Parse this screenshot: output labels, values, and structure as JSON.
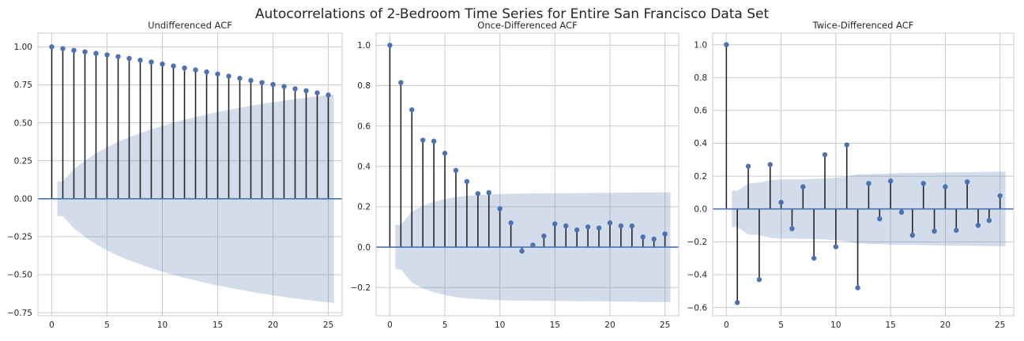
{
  "figure_title": "Autocorrelations of 2-Bedroom Time Series for Entire San Francisco Data Set",
  "colors": {
    "marker": "#4c72b0",
    "stem": "#262626",
    "band": "#4c72b0",
    "zero_line": "#4c72b0",
    "grid": "#cccccc",
    "spine": "#cccccc"
  },
  "chart_data": [
    {
      "type": "stem",
      "title": "Undifferenced ACF",
      "xlabel": "",
      "ylabel": "",
      "xlim": [
        -1.25,
        26.25
      ],
      "ylim": [
        -0.77,
        1.09
      ],
      "xticks": [
        0,
        5,
        10,
        15,
        20,
        25
      ],
      "xtick_labels": [
        "0",
        "5",
        "10",
        "15",
        "20",
        "25"
      ],
      "yticks": [
        -0.75,
        -0.5,
        -0.25,
        0.0,
        0.25,
        0.5,
        0.75,
        1.0
      ],
      "ytick_labels": [
        "−0.75",
        "−0.50",
        "−0.25",
        "0.00",
        "0.25",
        "0.50",
        "0.75",
        "1.00"
      ],
      "grid": true,
      "lags": [
        0,
        1,
        2,
        3,
        4,
        5,
        6,
        7,
        8,
        9,
        10,
        11,
        12,
        13,
        14,
        15,
        16,
        17,
        18,
        19,
        20,
        21,
        22,
        23,
        24,
        25
      ],
      "values": [
        1.0,
        0.988,
        0.977,
        0.967,
        0.957,
        0.947,
        0.936,
        0.924,
        0.912,
        0.9,
        0.887,
        0.874,
        0.861,
        0.848,
        0.835,
        0.821,
        0.807,
        0.793,
        0.779,
        0.765,
        0.752,
        0.739,
        0.724,
        0.711,
        0.697,
        0.683
      ],
      "confidence_band": {
        "lags": [
          0.5,
          1,
          2,
          3,
          4,
          5,
          6,
          7,
          8,
          9,
          10,
          11,
          12,
          13,
          14,
          15,
          16,
          17,
          18,
          19,
          20,
          21,
          22,
          23,
          24,
          25,
          25.5
        ],
        "upper": [
          0.115,
          0.115,
          0.195,
          0.25,
          0.3,
          0.34,
          0.375,
          0.405,
          0.432,
          0.457,
          0.48,
          0.501,
          0.52,
          0.538,
          0.555,
          0.571,
          0.585,
          0.599,
          0.612,
          0.624,
          0.635,
          0.646,
          0.656,
          0.665,
          0.674,
          0.682,
          0.686
        ]
      }
    },
    {
      "type": "stem",
      "title": "Once-Differenced ACF",
      "xlabel": "",
      "ylabel": "",
      "xlim": [
        -1.25,
        26.25
      ],
      "ylim": [
        -0.34,
        1.06
      ],
      "xticks": [
        0,
        5,
        10,
        15,
        20,
        25
      ],
      "xtick_labels": [
        "0",
        "5",
        "10",
        "15",
        "20",
        "25"
      ],
      "yticks": [
        -0.2,
        0.0,
        0.2,
        0.4,
        0.6,
        0.8,
        1.0
      ],
      "ytick_labels": [
        "−0.2",
        "0.0",
        "0.2",
        "0.4",
        "0.6",
        "0.8",
        "1.0"
      ],
      "grid": true,
      "lags": [
        0,
        1,
        2,
        3,
        4,
        5,
        6,
        7,
        8,
        9,
        10,
        11,
        12,
        13,
        14,
        15,
        16,
        17,
        18,
        19,
        20,
        21,
        22,
        23,
        24,
        25
      ],
      "values": [
        1.0,
        0.815,
        0.68,
        0.53,
        0.525,
        0.465,
        0.38,
        0.325,
        0.265,
        0.27,
        0.19,
        0.12,
        -0.02,
        0.01,
        0.055,
        0.115,
        0.105,
        0.085,
        0.1,
        0.095,
        0.12,
        0.105,
        0.105,
        0.05,
        0.04,
        0.065
      ],
      "confidence_band": {
        "lags": [
          0.5,
          1,
          2,
          3,
          4,
          5,
          6,
          7,
          8,
          9,
          10,
          11,
          12,
          13,
          14,
          15,
          16,
          17,
          18,
          19,
          20,
          21,
          22,
          23,
          24,
          25,
          25.5
        ],
        "upper": [
          0.11,
          0.11,
          0.175,
          0.205,
          0.224,
          0.238,
          0.248,
          0.254,
          0.258,
          0.261,
          0.263,
          0.264,
          0.265,
          0.266,
          0.266,
          0.267,
          0.267,
          0.268,
          0.268,
          0.269,
          0.269,
          0.27,
          0.27,
          0.271,
          0.271,
          0.272,
          0.272
        ]
      }
    },
    {
      "type": "stem",
      "title": "Twice-Differenced ACF",
      "xlabel": "",
      "ylabel": "",
      "xlim": [
        -1.25,
        26.25
      ],
      "ylim": [
        -0.65,
        1.07
      ],
      "xticks": [
        0,
        5,
        10,
        15,
        20,
        25
      ],
      "xtick_labels": [
        "0",
        "5",
        "10",
        "15",
        "20",
        "25"
      ],
      "yticks": [
        -0.6,
        -0.4,
        -0.2,
        0.0,
        0.2,
        0.4,
        0.6,
        0.8,
        1.0
      ],
      "ytick_labels": [
        "−0.6",
        "−0.4",
        "−0.2",
        "0.0",
        "0.2",
        "0.4",
        "0.6",
        "0.8",
        "1.0"
      ],
      "grid": true,
      "lags": [
        0,
        1,
        2,
        3,
        4,
        5,
        6,
        7,
        8,
        9,
        10,
        11,
        12,
        13,
        14,
        15,
        16,
        17,
        18,
        19,
        20,
        21,
        22,
        23,
        24,
        25
      ],
      "values": [
        1.0,
        -0.57,
        0.26,
        -0.43,
        0.27,
        0.04,
        -0.12,
        0.135,
        -0.3,
        0.33,
        -0.23,
        0.39,
        -0.48,
        0.155,
        -0.06,
        0.17,
        -0.02,
        -0.16,
        0.155,
        -0.135,
        0.135,
        -0.13,
        0.165,
        -0.1,
        -0.07,
        0.08
      ],
      "confidence_band": {
        "lags": [
          0.5,
          1,
          2,
          3,
          4,
          5,
          6,
          7,
          8,
          9,
          10,
          11,
          12,
          13,
          14,
          15,
          16,
          17,
          18,
          19,
          20,
          21,
          22,
          23,
          24,
          25,
          25.5
        ],
        "upper": [
          0.11,
          0.11,
          0.155,
          0.16,
          0.175,
          0.18,
          0.18,
          0.181,
          0.183,
          0.186,
          0.19,
          0.197,
          0.21,
          0.212,
          0.214,
          0.216,
          0.218,
          0.219,
          0.22,
          0.221,
          0.222,
          0.223,
          0.224,
          0.225,
          0.226,
          0.227,
          0.227
        ]
      }
    }
  ]
}
